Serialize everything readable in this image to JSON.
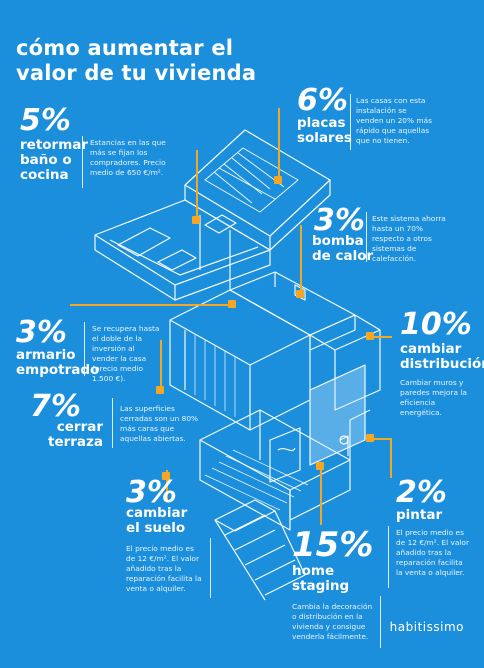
{
  "title_lines": [
    "cómo aumentar el",
    "valor de tu vivienda"
  ],
  "items": {
    "bano": {
      "percent": "5%",
      "label_lines": [
        "retormar",
        "baño o",
        "cocina"
      ],
      "description": "Estancias en las que más se fijan los compradores. Precio medio de 650 €/m²."
    },
    "placas": {
      "percent": "6%",
      "label_lines": [
        "placas",
        "solares"
      ],
      "description": "Las casas con esta instalación se venden un 20% más rápido que aquellas que no tienen."
    },
    "bomba": {
      "percent": "3%",
      "label_lines": [
        "bomba",
        "de calor"
      ],
      "description": "Este sistema ahorra hasta un 70% respecto a otros sistemas de calefacción."
    },
    "armario": {
      "percent": "3%",
      "label_lines": [
        "armario",
        "empotrado"
      ],
      "description": "Se recupera hasta el doble de la inversión al vender la casa (precio medio 1.500 €)."
    },
    "distribucion": {
      "percent": "10%",
      "label_lines": [
        "cambiar",
        "distribución"
      ],
      "description": "Cambiar muros y paredes mejora la eficiencia energética."
    },
    "terraza": {
      "percent": "7%",
      "label_lines": [
        "cerrar",
        "terraza"
      ],
      "description": "Las superficies cerradas son un 80% más caras que aquellas abiertas."
    },
    "suelo": {
      "percent": "3%",
      "label_lines": [
        "cambiar",
        "el suelo"
      ],
      "description": "El precio medio es de 12 €/m². El valor añadido tras la reparación facilita la venta o alquiler."
    },
    "pintar": {
      "percent": "2%",
      "label_lines": [
        "pintar"
      ],
      "description": "El precio medio es de 12 €/m². El valor añadido tras la reparación facilita la venta o alquiler."
    },
    "staging": {
      "percent": "15%",
      "label_lines": [
        "home",
        "staging"
      ],
      "description": "Cambia la decoración o distribución en la vivienda y consigue venderla fácilmente."
    }
  },
  "brand": "habitissimo",
  "colors": {
    "background": "#1b8fdc",
    "accent": "#f5a623",
    "line": "#ffffff"
  }
}
